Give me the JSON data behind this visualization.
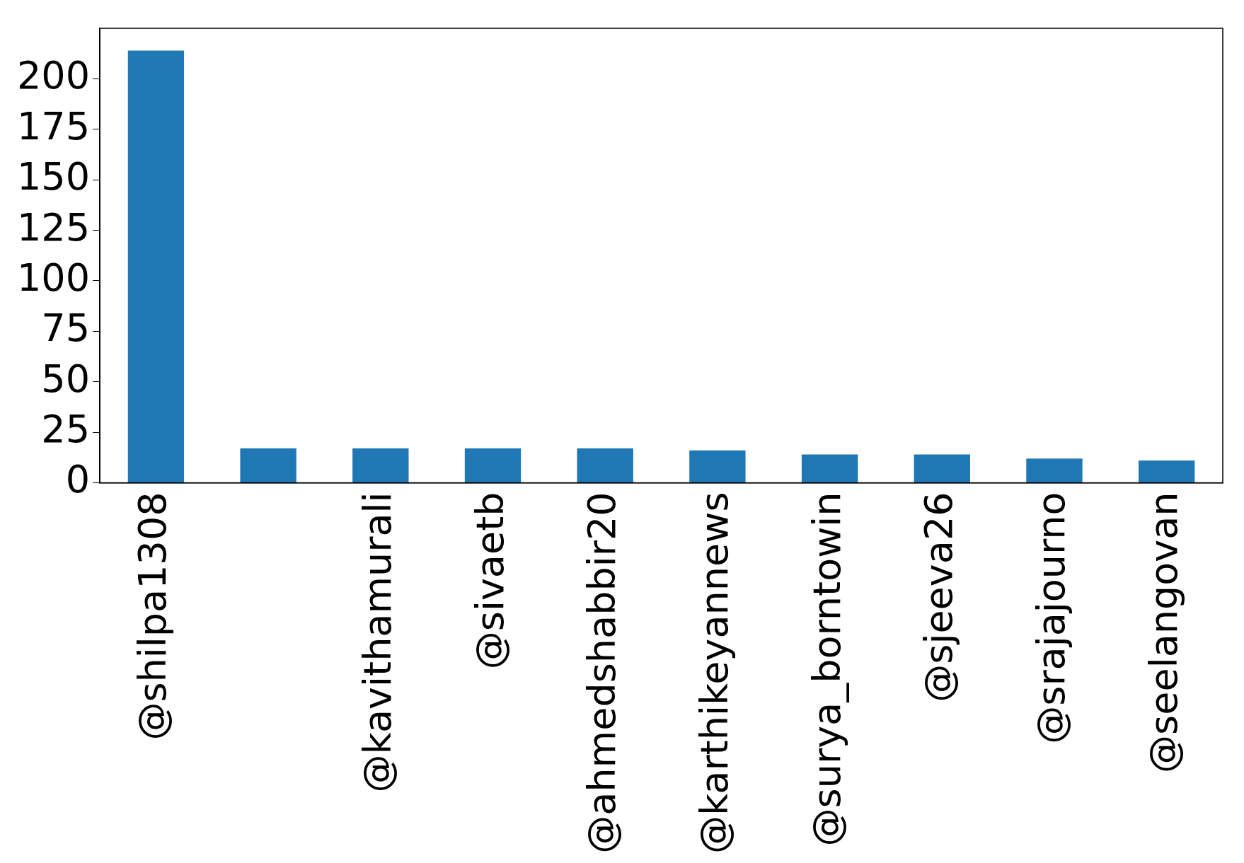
{
  "chart_data": {
    "type": "bar",
    "categories": [
      "@shilpa1308",
      null,
      "@kavithamurali",
      "@sivaetb",
      "@ahmedshabbir20",
      "@karthikeyannews",
      "@surya_borntowin",
      "@sjeeva26",
      "@srajajourno",
      "@seelangovan"
    ],
    "values": [
      214,
      17,
      17,
      17,
      17,
      16,
      14,
      14,
      12,
      11
    ],
    "color": "#1f77b4",
    "ylim": [
      0,
      225
    ],
    "yticks": [
      0,
      25,
      50,
      75,
      100,
      125,
      150,
      175,
      200
    ],
    "grid": false,
    "legend": false
  }
}
